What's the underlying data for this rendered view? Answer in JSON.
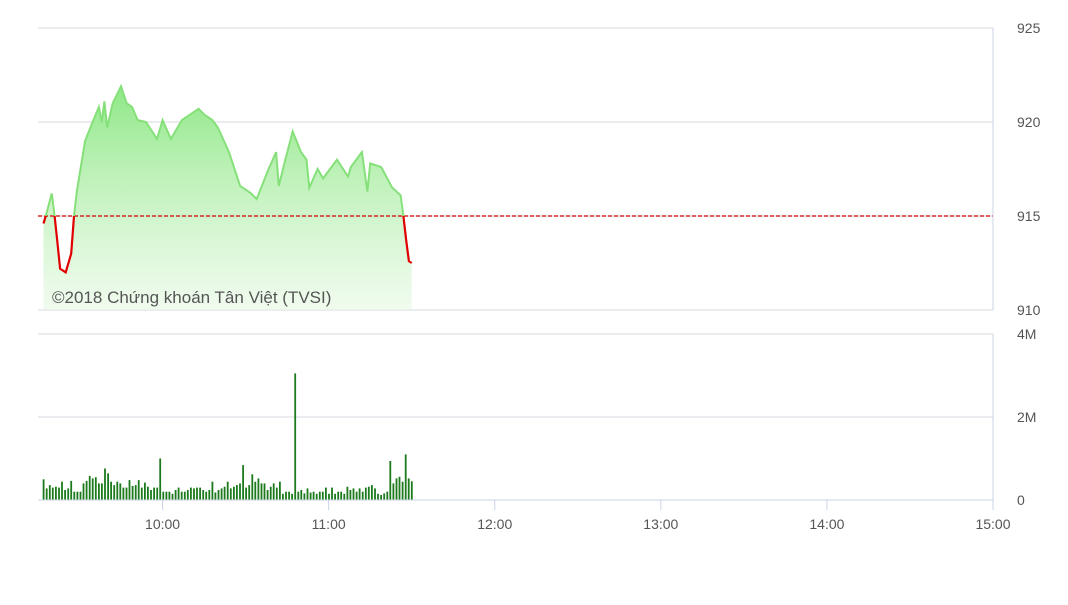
{
  "chart_data": [
    {
      "type": "area",
      "title": "",
      "watermark": "©2018 Chứng khoán Tân Việt (TVSI)",
      "reference_value": 915,
      "ylim": [
        910,
        925
      ],
      "y_ticks": [
        "925",
        "920",
        "915",
        "910"
      ],
      "y_tick_values": [
        925,
        920,
        915,
        910
      ],
      "axis_position": "right",
      "grid": true,
      "colors": {
        "up_line": "#86e07a",
        "up_fill": "#90ee90",
        "down_line": "#e00000",
        "reference": "#d40000"
      },
      "series": [
        {
          "x": [
            "09:17",
            "09:18",
            "09:20",
            "09:21",
            "09:22",
            "09:23",
            "09:25",
            "09:27",
            "09:28",
            "09:29",
            "09:32",
            "09:35",
            "09:37",
            "09:38",
            "09:39",
            "09:40",
            "09:42",
            "09:45",
            "09:47",
            "09:49",
            "09:51",
            "09:54",
            "09:58",
            "10:00",
            "10:03",
            "10:07",
            "10:11",
            "10:13",
            "10:15",
            "10:18",
            "10:20",
            "10:24",
            "10:28",
            "10:32",
            "10:34",
            "10:38",
            "10:41",
            "10:42",
            "10:44",
            "10:47",
            "10:50",
            "10:52",
            "10:53",
            "10:56",
            "10:58",
            "11:03",
            "11:07",
            "11:08",
            "11:12",
            "11:14",
            "11:15",
            "11:19",
            "11:23",
            "11:26",
            "11:27",
            "11:28",
            "11:29",
            "11:30"
          ],
          "y": [
            914.6,
            915.1,
            916.2,
            915.0,
            913.6,
            912.2,
            912.0,
            913.0,
            915.0,
            916.3,
            919.0,
            920.1,
            920.8,
            920.0,
            921.1,
            919.7,
            921.0,
            921.9,
            921.0,
            920.8,
            920.1,
            920.0,
            919.1,
            920.1,
            919.1,
            920.1,
            920.5,
            920.7,
            920.4,
            920.1,
            919.7,
            918.4,
            916.6,
            916.2,
            915.9,
            917.4,
            918.4,
            916.6,
            917.8,
            919.5,
            918.4,
            918.0,
            916.5,
            917.5,
            917.0,
            918.0,
            917.1,
            917.6,
            918.4,
            916.3,
            917.8,
            917.6,
            916.5,
            916.1,
            915.0,
            913.7,
            912.6,
            912.5
          ]
        }
      ]
    },
    {
      "type": "bar",
      "title": "",
      "ylim": [
        0,
        4
      ],
      "y_ticks": [
        "4M",
        "2M",
        "0"
      ],
      "y_tick_values": [
        4,
        2,
        0
      ],
      "unit": "M",
      "grid": true,
      "color": "#1c7a1c",
      "start": "09:17",
      "end": "11:30",
      "values": [
        0.5,
        0.28,
        0.36,
        0.3,
        0.32,
        0.3,
        0.44,
        0.24,
        0.28,
        0.46,
        0.2,
        0.2,
        0.2,
        0.4,
        0.46,
        0.58,
        0.52,
        0.55,
        0.4,
        0.4,
        0.76,
        0.64,
        0.44,
        0.36,
        0.44,
        0.4,
        0.3,
        0.3,
        0.48,
        0.34,
        0.36,
        0.48,
        0.3,
        0.42,
        0.32,
        0.24,
        0.3,
        0.3,
        1.0,
        0.2,
        0.2,
        0.2,
        0.15,
        0.24,
        0.3,
        0.2,
        0.2,
        0.24,
        0.3,
        0.28,
        0.3,
        0.3,
        0.24,
        0.2,
        0.24,
        0.44,
        0.18,
        0.24,
        0.28,
        0.32,
        0.44,
        0.28,
        0.32,
        0.36,
        0.4,
        0.84,
        0.3,
        0.36,
        0.62,
        0.44,
        0.52,
        0.4,
        0.4,
        0.24,
        0.32,
        0.4,
        0.3,
        0.44,
        0.15,
        0.2,
        0.2,
        0.15,
        3.05,
        0.2,
        0.24,
        0.16,
        0.28,
        0.18,
        0.2,
        0.15,
        0.2,
        0.2,
        0.3,
        0.15,
        0.3,
        0.15,
        0.2,
        0.2,
        0.15,
        0.32,
        0.24,
        0.28,
        0.2,
        0.28,
        0.2,
        0.3,
        0.32,
        0.36,
        0.28,
        0.15,
        0.12,
        0.16,
        0.2,
        0.94,
        0.4,
        0.52,
        0.56,
        0.44,
        1.1,
        0.52,
        0.45
      ]
    }
  ],
  "x_axis": {
    "range": [
      "09:15",
      "15:00"
    ],
    "ticks": [
      "10:00",
      "11:00",
      "12:00",
      "13:00",
      "14:00",
      "15:00"
    ]
  }
}
